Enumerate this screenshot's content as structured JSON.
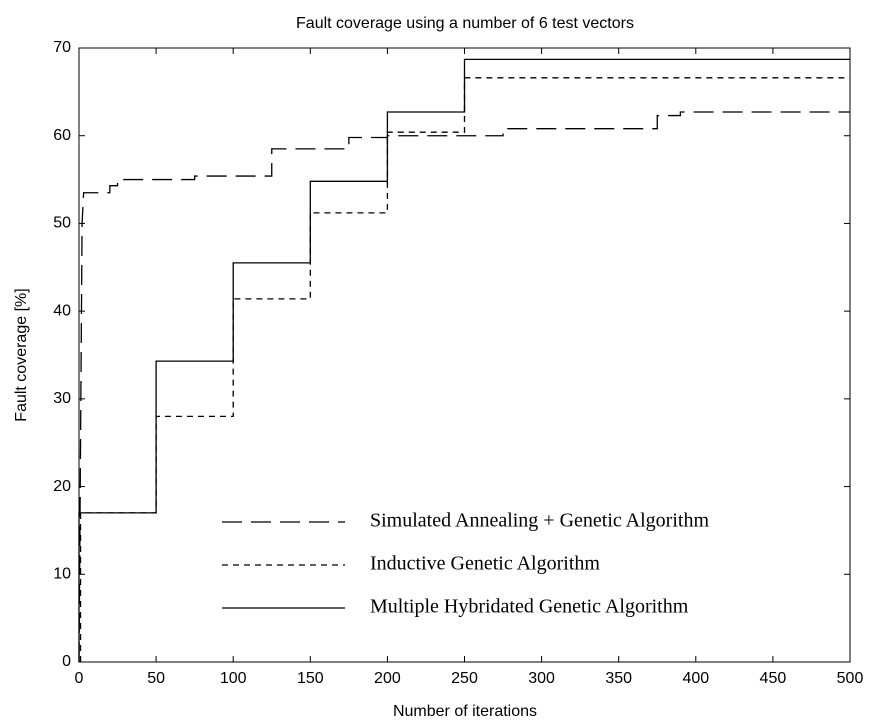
{
  "chart_data": {
    "type": "line",
    "title": "Fault coverage using a number of 6 test vectors",
    "x_label": "Number of iterations",
    "y_label": "Fault coverage  [%]",
    "xlim": [
      0,
      500
    ],
    "xticks": [
      0,
      50,
      100,
      150,
      200,
      250,
      300,
      350,
      400,
      450,
      500
    ],
    "ylim": [
      0,
      70
    ],
    "yticks": [
      0,
      10,
      20,
      30,
      40,
      50,
      60,
      70
    ],
    "grid": false,
    "legend": "lower right",
    "series": [
      {
        "name": "Simulated Annealing + Genetic Algorithm",
        "color": "#000000",
        "style": "dashed",
        "x": [
          0,
          1,
          2,
          3,
          20,
          20,
          25,
          25,
          75,
          75,
          125,
          125,
          175,
          175,
          200,
          200,
          275,
          275,
          375,
          375,
          390,
          390,
          500
        ],
        "values": [
          0,
          25,
          50,
          53.5,
          53.5,
          54.3,
          54.3,
          55,
          55,
          55.4,
          55.4,
          58.5,
          58.5,
          59.8,
          59.8,
          60,
          60,
          60.8,
          60.8,
          62.3,
          62.3,
          62.7,
          62.7
        ]
      },
      {
        "name": "Inductive Genetic Algorithm",
        "color": "#000000",
        "style": "dotted",
        "x": [
          1,
          1,
          50,
          50,
          100,
          100,
          150,
          150,
          200,
          200,
          250,
          250,
          500
        ],
        "values": [
          0,
          17,
          17,
          28,
          28,
          41.4,
          41.4,
          51.2,
          51.2,
          60.4,
          60.4,
          66.6,
          66.6
        ]
      },
      {
        "name": "Multiple Hybridated Genetic Algorithm",
        "color": "#000000",
        "style": "solid",
        "x": [
          0,
          0,
          50,
          50,
          100,
          100,
          150,
          150,
          200,
          200,
          250,
          250,
          500
        ],
        "values": [
          0,
          17,
          17,
          34.3,
          34.3,
          45.5,
          45.5,
          54.8,
          54.8,
          62.7,
          62.7,
          68.7,
          68.7
        ]
      }
    ]
  }
}
